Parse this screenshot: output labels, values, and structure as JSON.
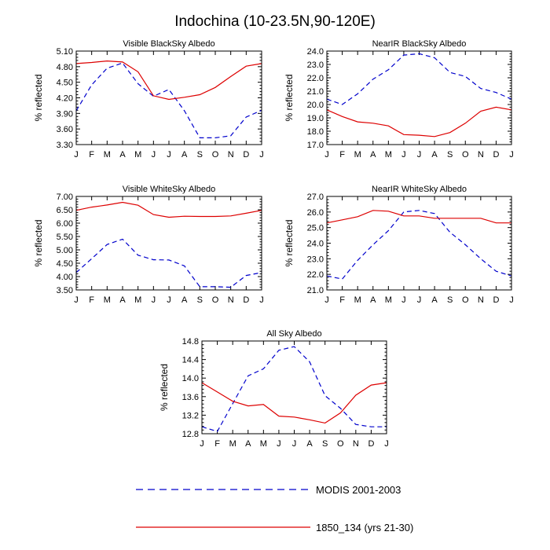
{
  "figure_title": "Indochina (10-23.5N,90-120E)",
  "colors": {
    "modis": "#0000cc",
    "model": "#dd0000"
  },
  "legend": {
    "placement": "bottom-center",
    "entries": [
      {
        "label": "MODIS 2001-2003",
        "style": "dashed",
        "color": "#0000cc"
      },
      {
        "label": "1850_134 (yrs 21-30)",
        "style": "solid",
        "color": "#dd0000"
      }
    ]
  },
  "chart_data": [
    {
      "type": "line",
      "title": "Visible BlackSky Albedo",
      "xlabel": "",
      "ylabel": "% reflected",
      "categories": [
        "J",
        "F",
        "M",
        "A",
        "M",
        "J",
        "J",
        "A",
        "S",
        "O",
        "N",
        "D",
        "J"
      ],
      "ylim": [
        3.3,
        5.1
      ],
      "yticks": [
        "3.30",
        "3.60",
        "3.90",
        "4.20",
        "4.50",
        "4.80",
        "5.10"
      ],
      "series": [
        {
          "name": "MODIS 2001-2003",
          "values": [
            3.95,
            4.45,
            4.77,
            4.87,
            4.47,
            4.23,
            4.36,
            3.95,
            3.43,
            3.43,
            3.47,
            3.83,
            3.96
          ]
        },
        {
          "name": "1850_134 (yrs 21-30)",
          "values": [
            4.86,
            4.88,
            4.91,
            4.89,
            4.7,
            4.24,
            4.17,
            4.21,
            4.26,
            4.4,
            4.61,
            4.81,
            4.86
          ]
        }
      ]
    },
    {
      "type": "line",
      "title": "NearIR BlackSky Albedo",
      "xlabel": "",
      "ylabel": "% reflected",
      "categories": [
        "J",
        "F",
        "M",
        "A",
        "M",
        "J",
        "J",
        "A",
        "S",
        "O",
        "N",
        "D",
        "J"
      ],
      "ylim": [
        17.0,
        24.0
      ],
      "yticks": [
        "17.0",
        "18.0",
        "19.0",
        "20.0",
        "21.0",
        "22.0",
        "23.0",
        "24.0"
      ],
      "series": [
        {
          "name": "MODIS 2001-2003",
          "values": [
            20.4,
            20.0,
            20.8,
            21.9,
            22.6,
            23.7,
            23.8,
            23.5,
            22.4,
            22.1,
            21.2,
            20.9,
            20.4
          ]
        },
        {
          "name": "1850_134 (yrs 21-30)",
          "values": [
            19.6,
            19.1,
            18.7,
            18.6,
            18.4,
            17.75,
            17.7,
            17.6,
            17.9,
            18.6,
            19.5,
            19.8,
            19.6
          ]
        }
      ]
    },
    {
      "type": "line",
      "title": "Visible WhiteSky Albedo",
      "xlabel": "",
      "ylabel": "% reflected",
      "categories": [
        "J",
        "F",
        "M",
        "A",
        "M",
        "J",
        "J",
        "A",
        "S",
        "O",
        "N",
        "D",
        "J"
      ],
      "ylim": [
        3.5,
        7.0
      ],
      "yticks": [
        "3.50",
        "4.00",
        "4.50",
        "5.00",
        "5.50",
        "6.00",
        "6.50",
        "7.00"
      ],
      "series": [
        {
          "name": "MODIS 2001-2003",
          "values": [
            4.15,
            4.67,
            5.2,
            5.4,
            4.8,
            4.63,
            4.62,
            4.4,
            3.62,
            3.62,
            3.6,
            4.04,
            4.15
          ]
        },
        {
          "name": "1850_134 (yrs 21-30)",
          "values": [
            6.48,
            6.6,
            6.68,
            6.78,
            6.67,
            6.32,
            6.22,
            6.26,
            6.25,
            6.25,
            6.27,
            6.37,
            6.48
          ]
        }
      ]
    },
    {
      "type": "line",
      "title": "NearIR WhiteSky Albedo",
      "xlabel": "",
      "ylabel": "% reflected",
      "categories": [
        "J",
        "F",
        "M",
        "A",
        "M",
        "J",
        "J",
        "A",
        "S",
        "O",
        "N",
        "D",
        "J"
      ],
      "ylim": [
        21.0,
        27.0
      ],
      "yticks": [
        "21.0",
        "22.0",
        "23.0",
        "24.0",
        "25.0",
        "26.0",
        "27.0"
      ],
      "series": [
        {
          "name": "MODIS 2001-2003",
          "values": [
            21.9,
            21.7,
            22.9,
            23.9,
            24.8,
            26.0,
            26.1,
            25.9,
            24.7,
            23.9,
            23.0,
            22.2,
            21.9
          ]
        },
        {
          "name": "1850_134 (yrs 21-30)",
          "values": [
            25.3,
            25.5,
            25.7,
            26.1,
            26.05,
            25.75,
            25.75,
            25.6,
            25.6,
            25.6,
            25.6,
            25.3,
            25.3
          ]
        }
      ]
    },
    {
      "type": "line",
      "title": "All Sky Albedo",
      "xlabel": "",
      "ylabel": "% reflected",
      "categories": [
        "J",
        "F",
        "M",
        "A",
        "M",
        "J",
        "J",
        "A",
        "S",
        "O",
        "N",
        "D",
        "J"
      ],
      "ylim": [
        12.8,
        14.8
      ],
      "yticks": [
        "12.8",
        "13.2",
        "13.6",
        "14.0",
        "14.4",
        "14.8"
      ],
      "series": [
        {
          "name": "MODIS 2001-2003",
          "values": [
            12.95,
            12.85,
            13.45,
            14.05,
            14.2,
            14.6,
            14.68,
            14.35,
            13.62,
            13.35,
            13.0,
            12.95,
            12.95
          ]
        },
        {
          "name": "1850_134 (yrs 21-30)",
          "values": [
            13.9,
            13.7,
            13.5,
            13.4,
            13.43,
            13.18,
            13.16,
            13.1,
            13.03,
            13.25,
            13.63,
            13.85,
            13.9
          ]
        }
      ]
    }
  ]
}
